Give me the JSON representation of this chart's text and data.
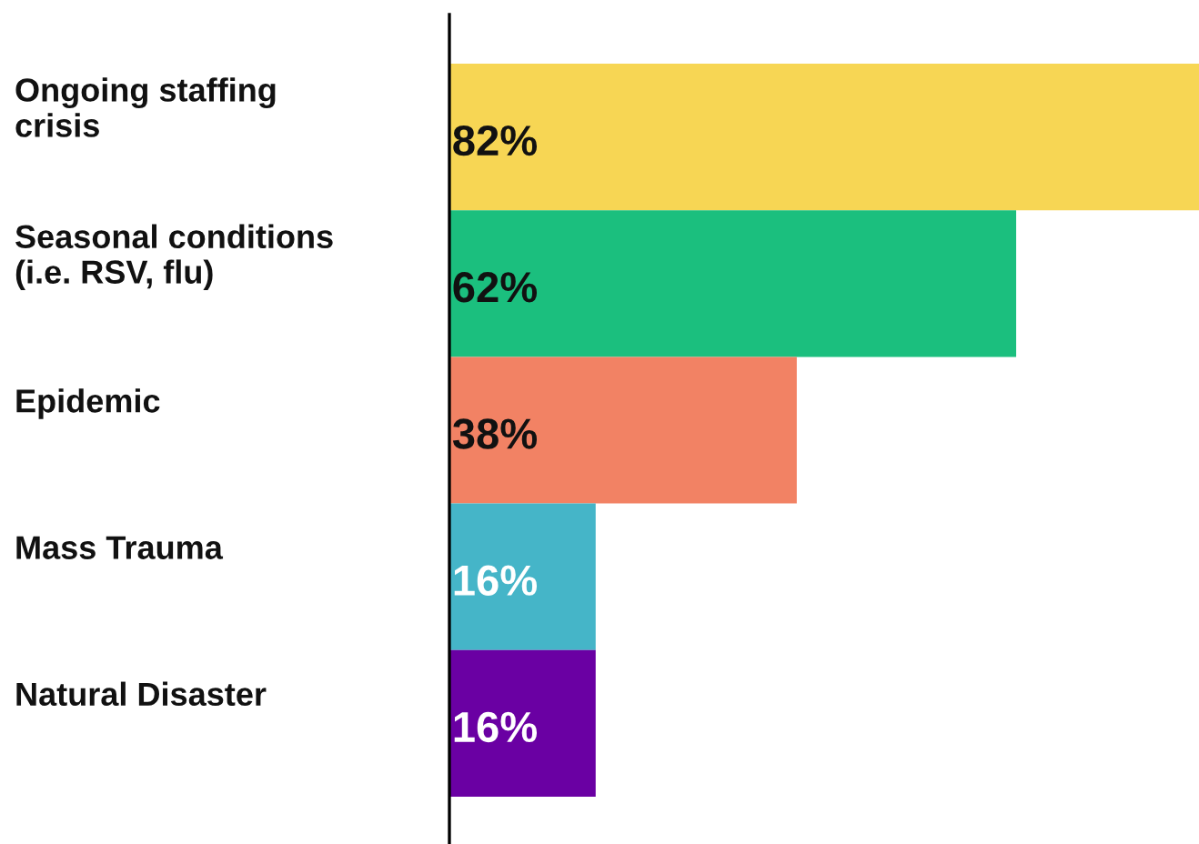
{
  "chart_data": {
    "type": "bar",
    "orientation": "horizontal",
    "categories": [
      "Ongoing staffing\ncrisis",
      "Seasonal conditions\n(i.e. RSV, flu)",
      "Epidemic",
      "Mass Trauma",
      "Natural Disaster"
    ],
    "values": [
      82,
      62,
      38,
      16,
      16
    ],
    "value_labels": [
      "82%",
      "62%",
      "38%",
      "16%",
      "16%"
    ],
    "colors": [
      "#f7d654",
      "#1bbf7e",
      "#f28264",
      "#45b5c8",
      "#6a00a3"
    ]
  }
}
